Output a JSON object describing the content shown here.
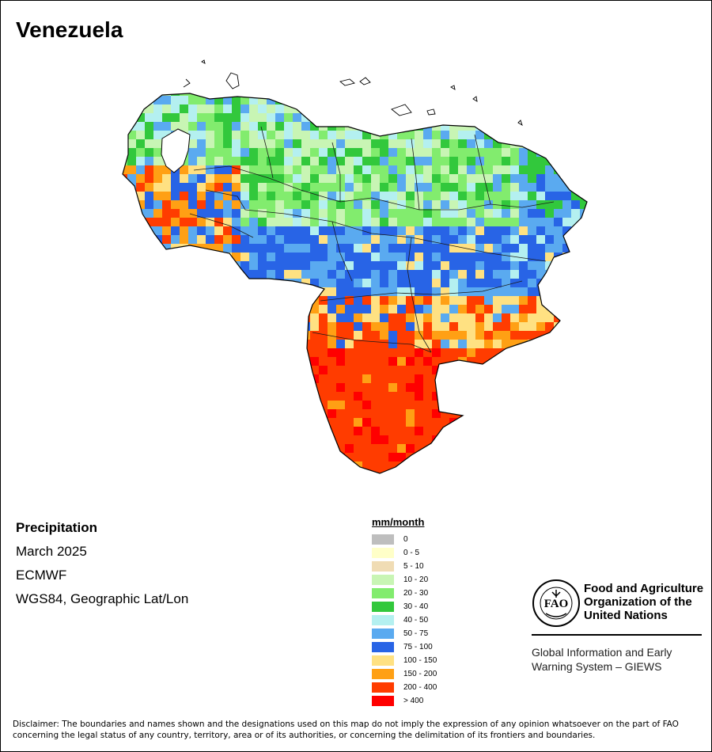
{
  "title": "Venezuela",
  "meta": {
    "variable": "Precipitation",
    "period": "March 2025",
    "source": "ECMWF",
    "projection": "WGS84, Geographic Lat/Lon"
  },
  "legend": {
    "title": "mm/month",
    "classes": [
      {
        "label": "0",
        "color": "#bebebe"
      },
      {
        "label": "0 - 5",
        "color": "#ffffc8"
      },
      {
        "label": "5 - 10",
        "color": "#f0dcb4"
      },
      {
        "label": "10 - 20",
        "color": "#c8f5b4"
      },
      {
        "label": "20 - 30",
        "color": "#82ec6e"
      },
      {
        "label": "30 - 40",
        "color": "#32c83c"
      },
      {
        "label": "40 - 50",
        "color": "#b4f0f0"
      },
      {
        "label": "50 - 75",
        "color": "#5aaaf0"
      },
      {
        "label": "75 - 100",
        "color": "#2864e6"
      },
      {
        "label": "100 - 150",
        "color": "#ffe182"
      },
      {
        "label": "150 - 200",
        "color": "#ffa014"
      },
      {
        "label": "200 - 400",
        "color": "#ff3c00"
      },
      {
        "label": "> 400",
        "color": "#ff0000"
      }
    ]
  },
  "organization": {
    "line1": "Food and Agriculture",
    "line2": "Organization of the",
    "line3": "United Nations",
    "program_line1": "Global Information and Early",
    "program_line2": "Warning System – GIEWS",
    "logo_letters": "FAO"
  },
  "disclaimer": "Disclaimer: The boundaries and names shown and the designations used on this map do not imply the expression of any opinion whatsoever on the part of FAO concerning the legal status of any country, territory, area or of its authorities, or concerning the delimitation of its frontiers and boundaries."
}
